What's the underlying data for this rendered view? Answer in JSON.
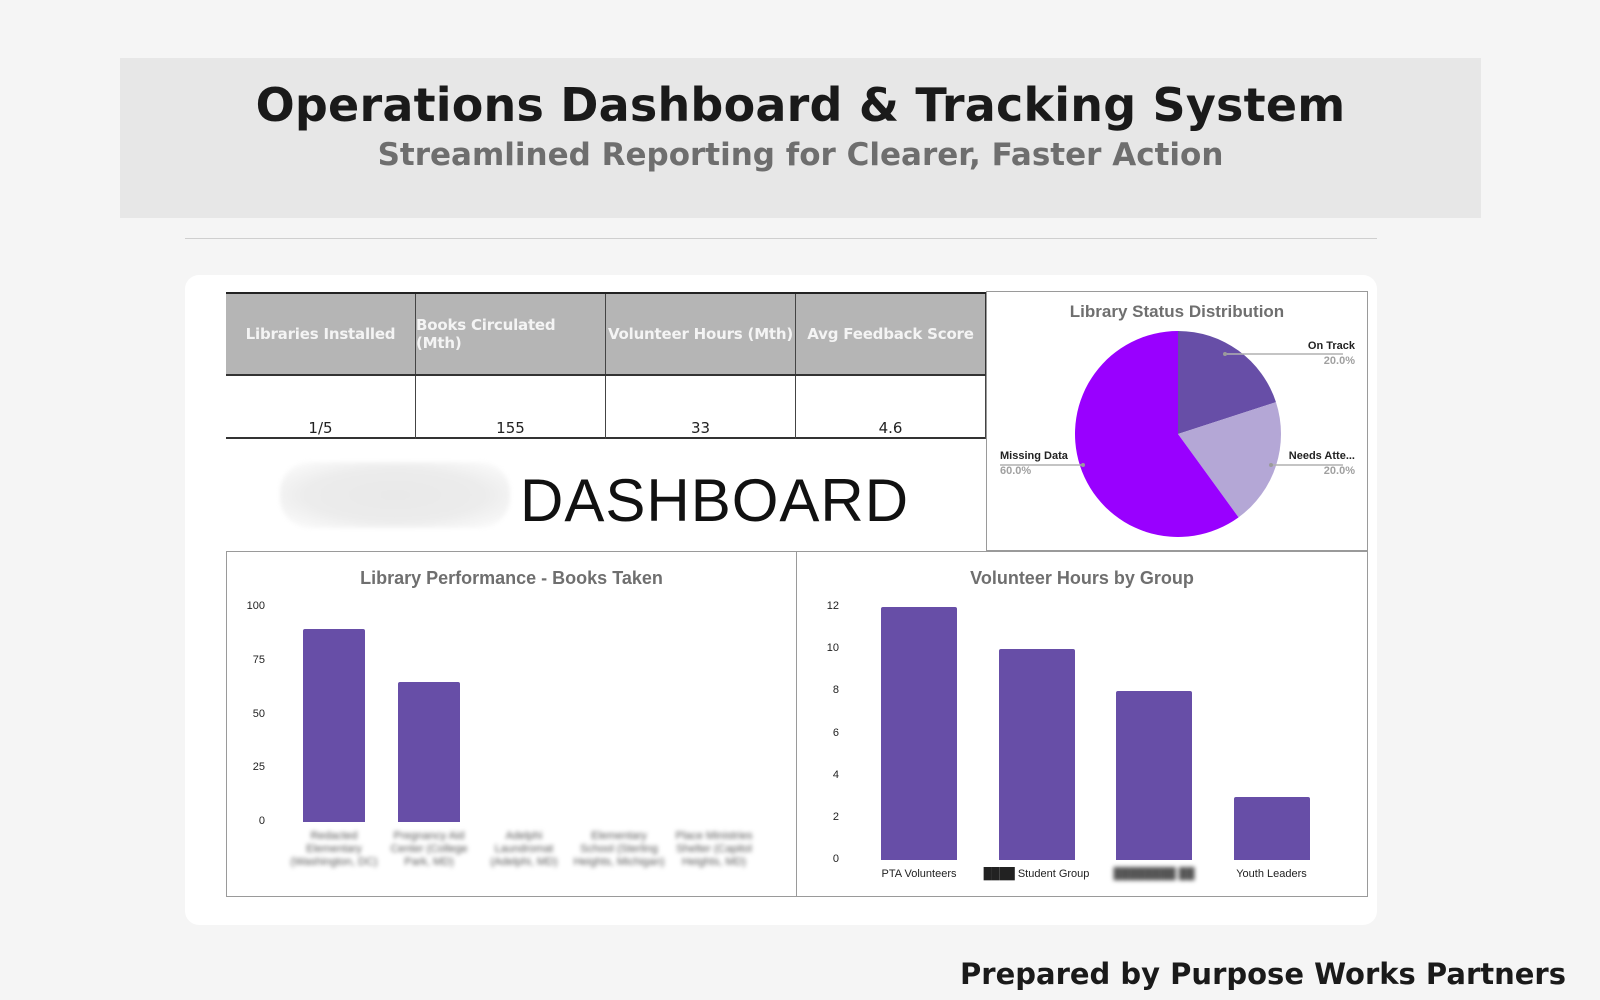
{
  "header": {
    "title": "Operations Dashboard & Tracking System",
    "subtitle": "Streamlined Reporting for Clearer, Faster Action"
  },
  "kpi_table": {
    "columns": [
      "Libraries Installed",
      "Books Circulated (Mth)",
      "Volunteer Hours (Mth)",
      "Avg Feedback Score"
    ],
    "values": [
      "1/5",
      "155",
      "33",
      "4.6"
    ],
    "header_bg": "#b5b5b5"
  },
  "dashboard_logo": {
    "word": "DASHBOARD",
    "logo_redacted": true
  },
  "colors": {
    "bar": "#674ea7",
    "pie_on_track": "#674ea7",
    "pie_needs_attention": "#b4a7d6",
    "pie_missing_data": "#9900ff",
    "page_bg": "#f5f5f5",
    "banner_bg": "#e7e7e7"
  },
  "footer": {
    "text": "Prepared by Purpose Works Partners"
  },
  "chart_data": [
    {
      "type": "pie",
      "title": "Library Status Distribution",
      "categories": [
        "On Track",
        "Needs Attention",
        "Missing Data"
      ],
      "display_labels": [
        "On Track",
        "Needs Atte...",
        "Missing Data"
      ],
      "values": [
        20.0,
        20.0,
        60.0
      ],
      "percent_labels": [
        "20.0%",
        "20.0%",
        "60.0%"
      ],
      "colors": [
        "#674ea7",
        "#b4a7d6",
        "#9900ff"
      ],
      "legend": "callout labels"
    },
    {
      "type": "bar",
      "title": "Library Performance - Books Taken",
      "categories": [
        "[blurred label 1]",
        "[blurred label 2]",
        "[blurred label 3]",
        "[blurred label 4]",
        "[blurred label 5]"
      ],
      "category_display": [
        "Redacted Elementary (Washington, DC)",
        "Pregnancy Aid Center (College Park, MD)",
        "Adelphi Laundromat (Adelphi, MD)",
        "Elementary School (Sterling Heights, Michigan)",
        "Place Ministries Shelter (Capitol Heights, MD)"
      ],
      "values": [
        90,
        65,
        0,
        0,
        0
      ],
      "xlabel": "",
      "ylabel": "",
      "ylim": [
        0,
        100
      ],
      "yticks": [
        "100",
        "75",
        "50",
        "25",
        "0"
      ],
      "grid": false,
      "labels_blurred": true
    },
    {
      "type": "bar",
      "title": "Volunteer Hours by Group",
      "categories": [
        "PTA Volunteers",
        "Student Group",
        "[blurred]",
        "Youth Leaders"
      ],
      "category_display": [
        "PTA Volunteers",
        "████ Student Group",
        "████████ ██",
        "Youth Leaders"
      ],
      "values": [
        12,
        10,
        8,
        3
      ],
      "xlabel": "",
      "ylabel": "",
      "ylim": [
        0,
        12
      ],
      "yticks": [
        "12",
        "10",
        "8",
        "6",
        "4",
        "2",
        "0"
      ],
      "grid": false
    }
  ]
}
